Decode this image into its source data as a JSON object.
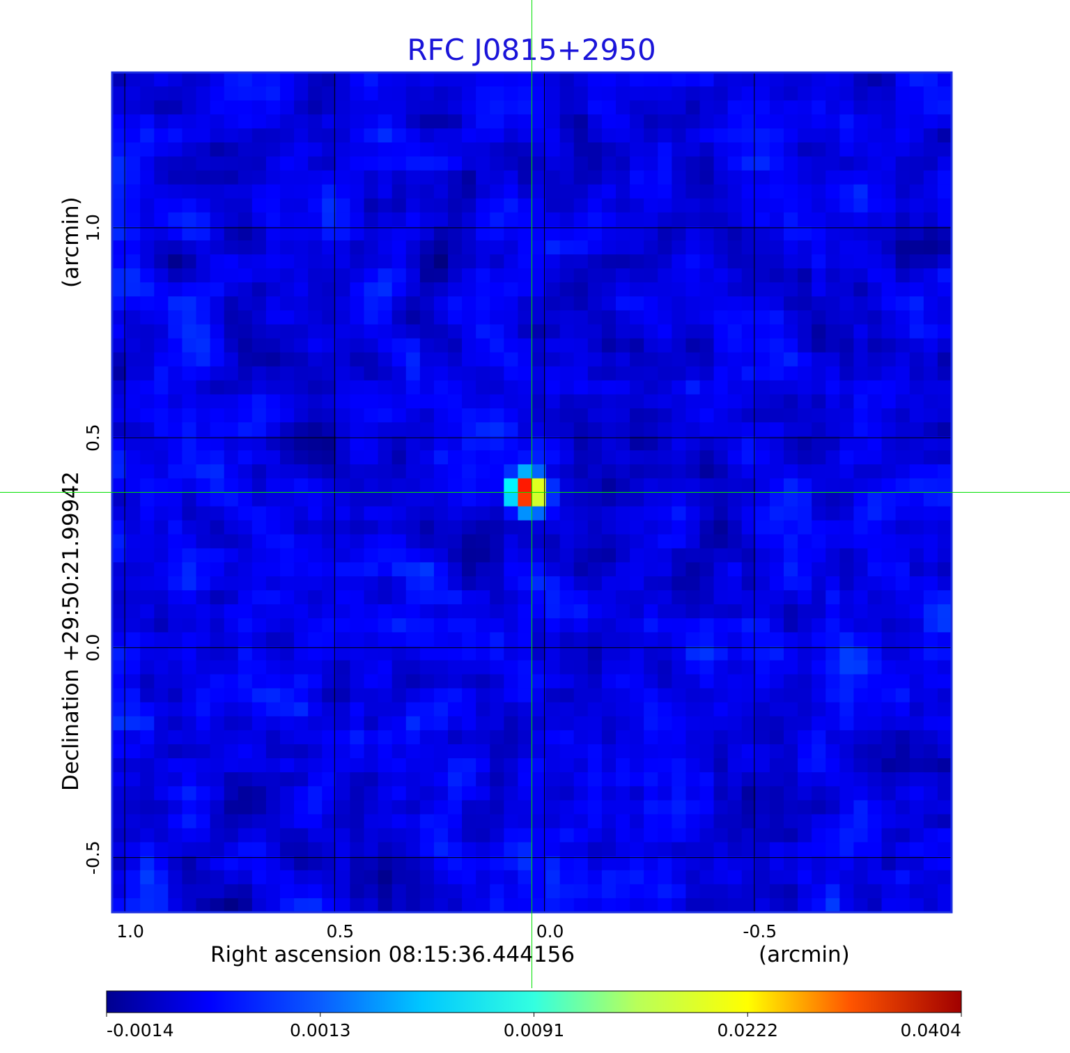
{
  "chart_data": {
    "type": "heatmap",
    "title": "RFC J0815+2950",
    "xlabel": "Right ascension  08:15:36.444156",
    "xlabel_unit": "(arcmin)",
    "ylabel": "Declination  +29:50:21.99942",
    "ylabel_unit": "(arcmin)",
    "x_ticks": [
      "1.0",
      "0.5",
      "0.0",
      "-0.5"
    ],
    "x_tick_values": [
      1.0,
      0.5,
      0.0,
      -0.5
    ],
    "y_ticks": [
      "1.0",
      "0.5",
      "0.0",
      "-0.5"
    ],
    "y_tick_values": [
      1.0,
      0.5,
      0.0,
      -0.5
    ],
    "xlim": [
      1.03,
      -0.97
    ],
    "ylim": [
      -0.63,
      1.37
    ],
    "grid": true,
    "colormap": "jet",
    "colorbar_ticks": [
      "-0.0014",
      "0.0013",
      "0.0091",
      "0.0222",
      "0.0404"
    ],
    "colorbar_tick_values": [
      -0.0014,
      0.0013,
      0.0091,
      0.0222,
      0.0404
    ],
    "source": {
      "x": 0.04,
      "y": 0.37,
      "peak": 0.0404
    },
    "crosshair": {
      "x": 0.03,
      "y": 0.37
    },
    "noise_background": 0.0008
  },
  "colors": {
    "title": "#1a14d9",
    "frame": "#1c2fe0",
    "grid": "#000000",
    "crosshair": "#00e000",
    "axis_text": "#000000"
  }
}
